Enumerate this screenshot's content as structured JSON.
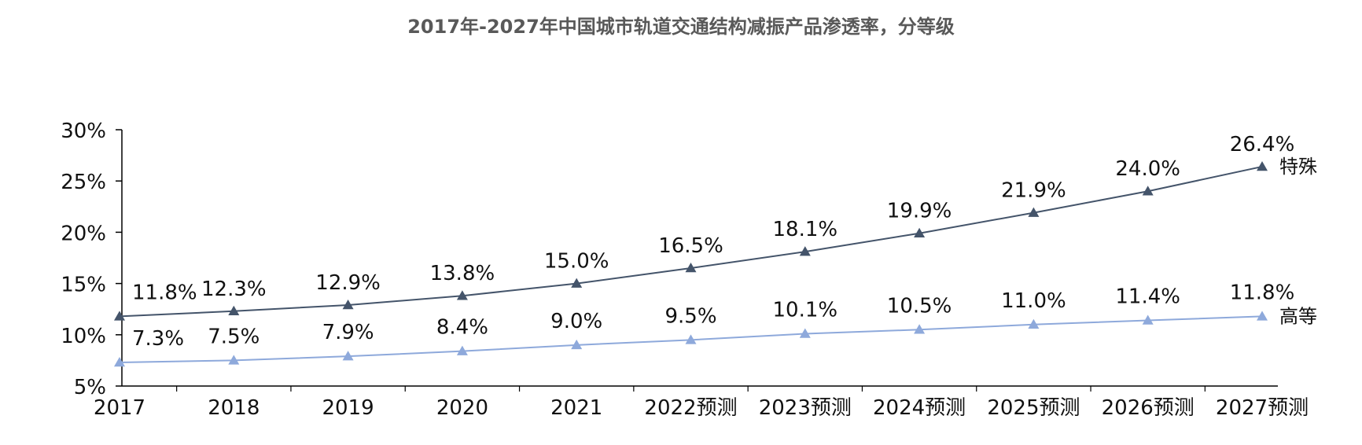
{
  "chart_data": {
    "type": "line",
    "title": "2017年-2027年中国城市轨道交通结构减振产品渗透率，分等级",
    "categories": [
      "2017",
      "2018",
      "2019",
      "2020",
      "2021",
      "2022预测",
      "2023预测",
      "2024预测",
      "2025预测",
      "2026预测",
      "2027预测"
    ],
    "series": [
      {
        "name": "特殊",
        "values": [
          11.8,
          12.3,
          12.9,
          13.8,
          15.0,
          16.5,
          18.1,
          19.9,
          21.9,
          24.0,
          26.4
        ],
        "labels": [
          "11.8%",
          "12.3%",
          "12.9%",
          "13.8%",
          "15.0%",
          "16.5%",
          "18.1%",
          "19.9%",
          "21.9%",
          "24.0%",
          "26.4%"
        ],
        "color": "#44546A"
      },
      {
        "name": "高等",
        "values": [
          7.3,
          7.5,
          7.9,
          8.4,
          9.0,
          9.5,
          10.1,
          10.5,
          11.0,
          11.4,
          11.8
        ],
        "labels": [
          "7.3%",
          "7.5%",
          "7.9%",
          "8.4%",
          "9.0%",
          "9.5%",
          "10.1%",
          "10.5%",
          "11.0%",
          "11.4%",
          "11.8%"
        ],
        "color": "#8EA9DB"
      }
    ],
    "ylim": [
      5,
      30
    ],
    "yticks": [
      5,
      10,
      15,
      20,
      25,
      30
    ],
    "ytick_labels": [
      "5%",
      "10%",
      "15%",
      "20%",
      "25%",
      "30%"
    ],
    "xlabel": "",
    "ylabel": "",
    "grid": false,
    "legend": "inline at line ends"
  }
}
